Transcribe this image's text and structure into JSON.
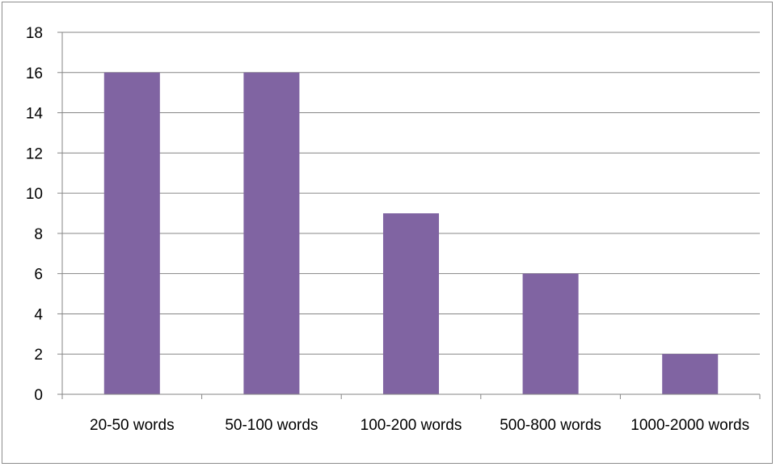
{
  "chart_data": {
    "type": "bar",
    "categories": [
      "20-50 words",
      "50-100 words",
      "100-200 words",
      "500-800 words",
      "1000-2000 words"
    ],
    "values": [
      16,
      16,
      9,
      6,
      2
    ],
    "ylim": [
      0,
      18
    ],
    "yticks": [
      "0",
      "2",
      "4",
      "6",
      "8",
      "10",
      "12",
      "14",
      "16",
      "18"
    ],
    "grid": true,
    "legend": "none"
  },
  "colors": {
    "bar": "#8064a2",
    "grid": "#868686",
    "axis": "#868686"
  }
}
